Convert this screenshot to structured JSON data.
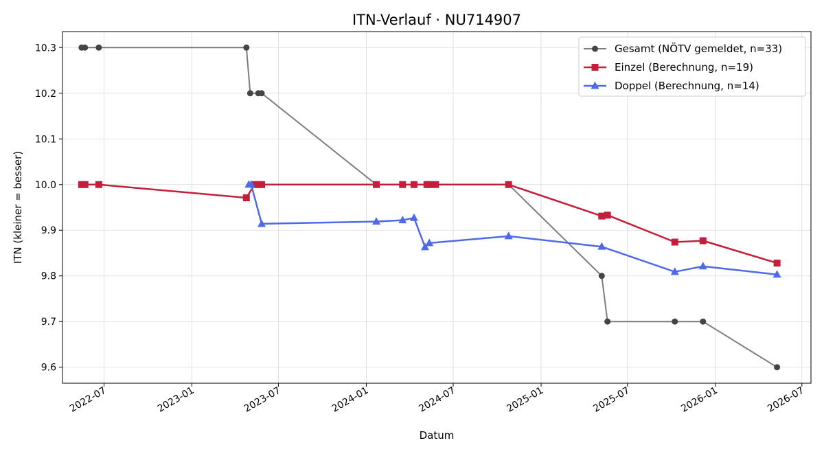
{
  "chart_data": {
    "type": "line",
    "title": "ITN-Verlauf · NU714907",
    "xlabel": "Datum",
    "ylabel": "ITN  (kleiner = besser)",
    "x_ticks": [
      "2022-07",
      "2023-01",
      "2023-07",
      "2024-01",
      "2024-07",
      "2025-01",
      "2025-07",
      "2026-01",
      "2026-07"
    ],
    "y_ticks": [
      "9.6",
      "9.7",
      "9.8",
      "9.9",
      "10.0",
      "10.1",
      "10.2",
      "10.3"
    ],
    "xlim": [
      "2022-04-05",
      "2026-07-20"
    ],
    "ylim": [
      9.565,
      10.335
    ],
    "grid": true,
    "legend_position": "top-right",
    "series": [
      {
        "name": "Gesamt (NÖTV gemeldet, n=33)",
        "color": "#666666",
        "marker": "circle",
        "points": [
          [
            "2022-05-15",
            10.3
          ],
          [
            "2022-05-22",
            10.3
          ],
          [
            "2022-06-20",
            10.3
          ],
          [
            "2023-04-25",
            10.3
          ],
          [
            "2023-05-03",
            10.2
          ],
          [
            "2023-05-20",
            10.2
          ],
          [
            "2023-05-27",
            10.2
          ],
          [
            "2024-01-22",
            10.0
          ],
          [
            "2024-03-17",
            10.0
          ],
          [
            "2024-04-10",
            10.0
          ],
          [
            "2024-05-07",
            10.0
          ],
          [
            "2024-05-12",
            10.0
          ],
          [
            "2024-05-25",
            10.0
          ],
          [
            "2024-10-25",
            10.0
          ],
          [
            "2025-05-08",
            9.8
          ],
          [
            "2025-05-20",
            9.7
          ],
          [
            "2025-10-08",
            9.7
          ],
          [
            "2025-12-06",
            9.7
          ],
          [
            "2026-05-10",
            9.6
          ]
        ]
      },
      {
        "name": "Einzel (Berechnung, n=19)",
        "color": "#c41e3a",
        "marker": "square",
        "points": [
          [
            "2022-05-15",
            10.0
          ],
          [
            "2022-05-22",
            10.0
          ],
          [
            "2022-06-20",
            10.0
          ],
          [
            "2023-04-25",
            9.971
          ],
          [
            "2023-05-12",
            10.0
          ],
          [
            "2023-05-20",
            10.0
          ],
          [
            "2023-05-27",
            10.0
          ],
          [
            "2024-01-22",
            10.0
          ],
          [
            "2024-03-17",
            10.0
          ],
          [
            "2024-04-10",
            10.0
          ],
          [
            "2024-05-07",
            10.0
          ],
          [
            "2024-05-12",
            10.0
          ],
          [
            "2024-05-25",
            10.0
          ],
          [
            "2024-10-25",
            10.0
          ],
          [
            "2025-05-08",
            9.931
          ],
          [
            "2025-05-20",
            9.933
          ],
          [
            "2025-10-08",
            9.874
          ],
          [
            "2025-12-06",
            9.877
          ],
          [
            "2026-05-10",
            9.828
          ]
        ]
      },
      {
        "name": "Doppel (Berechnung, n=14)",
        "color": "#4f6ae8",
        "marker": "triangle",
        "points": [
          [
            "2023-04-30",
            10.0
          ],
          [
            "2023-05-05",
            10.0
          ],
          [
            "2023-05-27",
            9.914
          ],
          [
            "2024-01-22",
            9.919
          ],
          [
            "2024-03-17",
            9.922
          ],
          [
            "2024-04-10",
            9.927
          ],
          [
            "2024-05-03",
            9.863
          ],
          [
            "2024-05-12",
            9.872
          ],
          [
            "2024-10-25",
            9.887
          ],
          [
            "2025-05-08",
            9.864
          ],
          [
            "2025-10-08",
            9.809
          ],
          [
            "2025-12-06",
            9.821
          ],
          [
            "2026-05-10",
            9.803
          ]
        ]
      }
    ]
  }
}
